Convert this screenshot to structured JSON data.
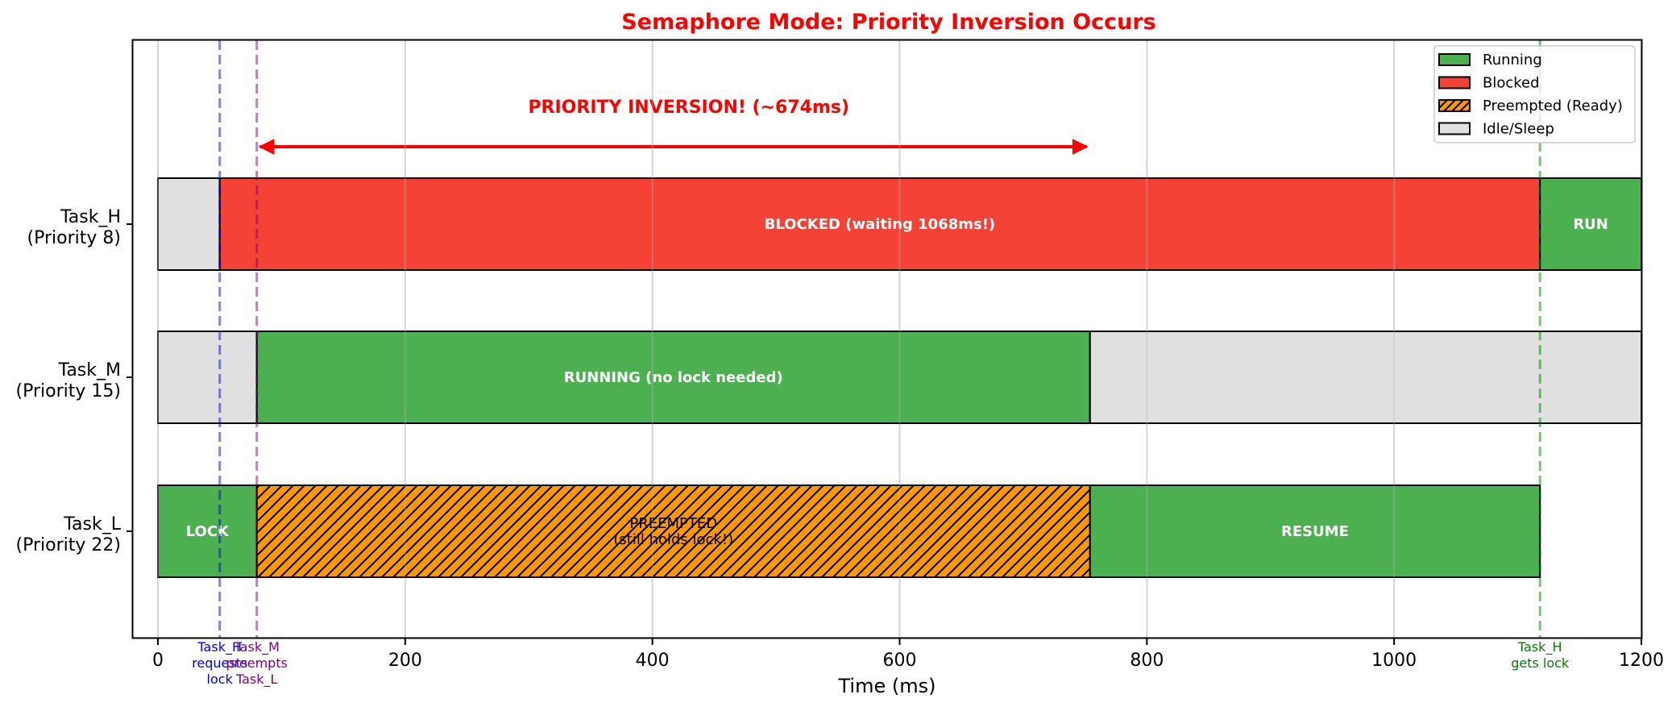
{
  "chart_data": {
    "type": "gantt",
    "title": "Semaphore Mode: Priority Inversion Occurs",
    "xlabel": "Time (ms)",
    "ylabel": "",
    "xlim": [
      -20,
      1200
    ],
    "xticks": [
      0,
      200,
      400,
      600,
      800,
      1000,
      1200
    ],
    "grid": true,
    "legend_position": "upper right",
    "legend": [
      {
        "label": "Running",
        "color": "#4caf50",
        "hatch": false
      },
      {
        "label": "Blocked",
        "color": "#f44336",
        "hatch": false
      },
      {
        "label": "Preempted (Ready)",
        "color": "#ff9800",
        "hatch": true
      },
      {
        "label": "Idle/Sleep",
        "color": "#e0e0e0",
        "hatch": false
      }
    ],
    "tasks": [
      {
        "name": "Task_H",
        "priority_label": "(Priority 8)",
        "segments": [
          {
            "start": 0,
            "end": 50,
            "state": "Idle/Sleep",
            "label": ""
          },
          {
            "start": 50,
            "end": 1118,
            "state": "Blocked",
            "label": "BLOCKED (waiting 1068ms!)"
          },
          {
            "start": 1118,
            "end": 1200,
            "state": "Running",
            "label": "RUN"
          }
        ]
      },
      {
        "name": "Task_M",
        "priority_label": "(Priority 15)",
        "segments": [
          {
            "start": 0,
            "end": 80,
            "state": "Idle/Sleep",
            "label": ""
          },
          {
            "start": 80,
            "end": 754,
            "state": "Running",
            "label": "RUNNING (no lock needed)"
          },
          {
            "start": 754,
            "end": 1200,
            "state": "Idle/Sleep",
            "label": ""
          }
        ]
      },
      {
        "name": "Task_L",
        "priority_label": "(Priority 22)",
        "segments": [
          {
            "start": 0,
            "end": 80,
            "state": "Running",
            "label": "LOCK"
          },
          {
            "start": 80,
            "end": 754,
            "state": "Preempted (Ready)",
            "label": "PREEMPTED\n(still holds lock!)"
          },
          {
            "start": 754,
            "end": 1118,
            "state": "Running",
            "label": "RESUME"
          }
        ]
      }
    ],
    "events": [
      {
        "x": 50,
        "label": "Task_H\nrequests\nlock",
        "color": "#0000ff"
      },
      {
        "x": 80,
        "label": "Task_M\npreempts\nTask_L",
        "color": "#800080"
      },
      {
        "x": 1118,
        "label": "Task_H\ngets lock",
        "color": "#008000"
      }
    ],
    "annotations": [
      {
        "type": "double-arrow",
        "x_start": 80,
        "x_end": 754,
        "text": "PRIORITY INVERSION! (~674ms)",
        "color": "#ff0000"
      }
    ]
  }
}
